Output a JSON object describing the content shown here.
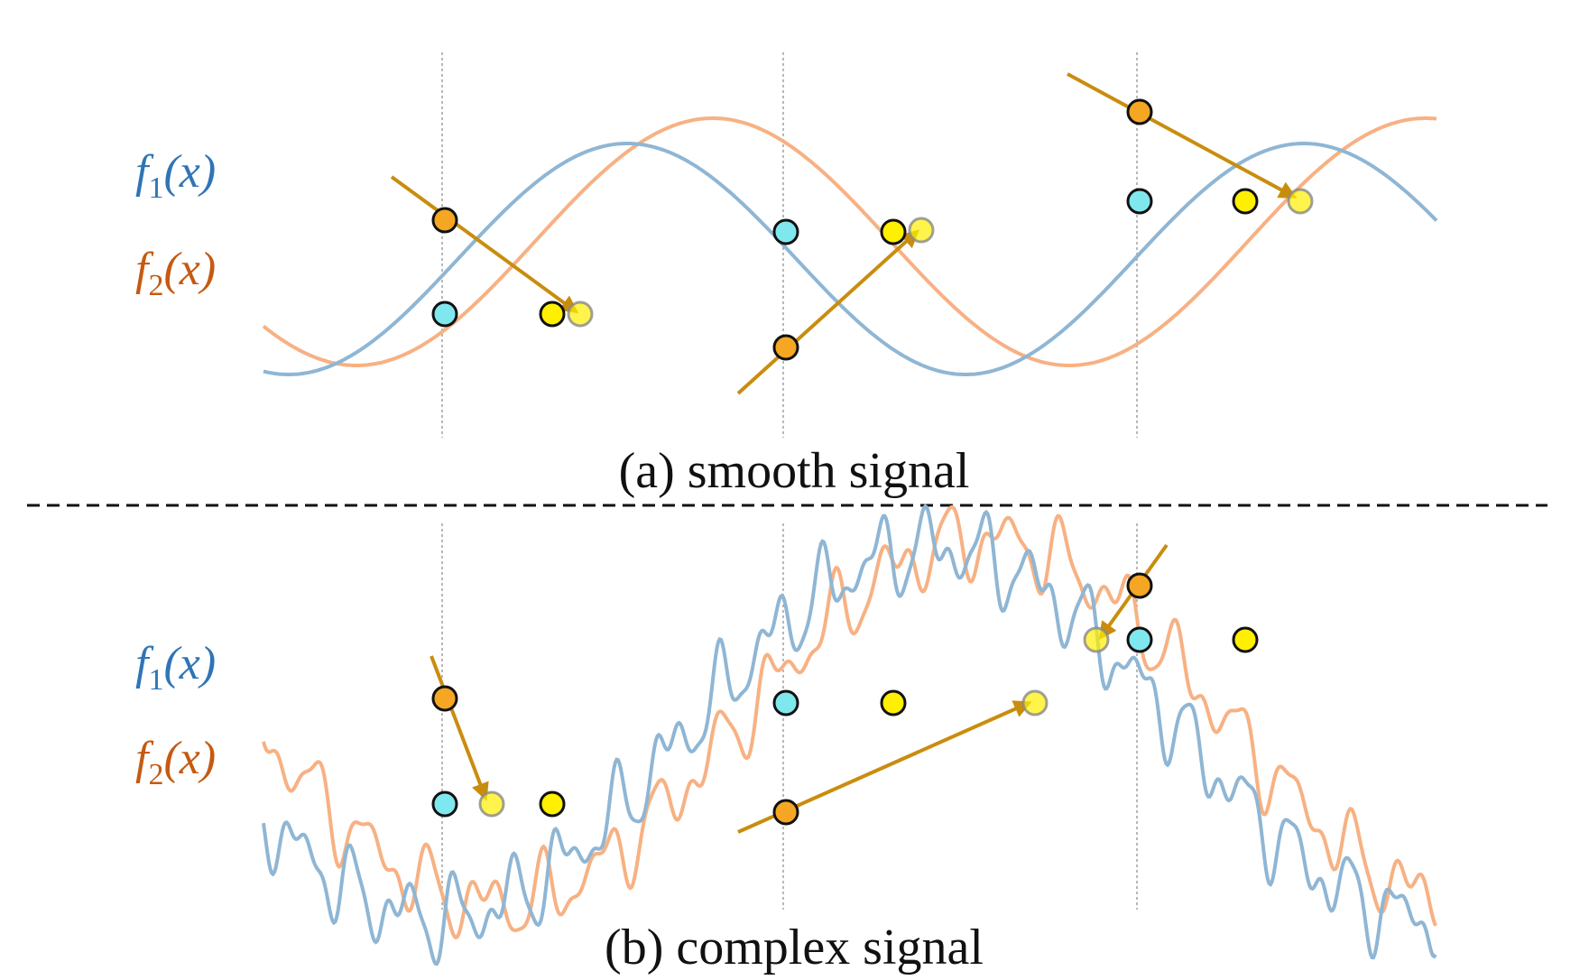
{
  "panels": {
    "a": {
      "caption": "(a) smooth signal"
    },
    "b": {
      "caption": "(b) complex signal"
    }
  },
  "legend": {
    "f1": {
      "func": "f",
      "sub": "1",
      "arg": "(x)"
    },
    "f2": {
      "func": "f",
      "sub": "2",
      "arg": "(x)"
    }
  },
  "colors": {
    "f1_curve": "#8fb6d4",
    "f2_curve": "#f7b183",
    "f1_label": "#2e75b6",
    "f2_label": "#c55a11",
    "arrow": "#c98d0e",
    "orange_point": "#f5a623",
    "yellow_point": "#ffef00",
    "cyan_point": "#7fe8ee",
    "guide": "#a0a0a0",
    "divider": "#111111"
  }
}
